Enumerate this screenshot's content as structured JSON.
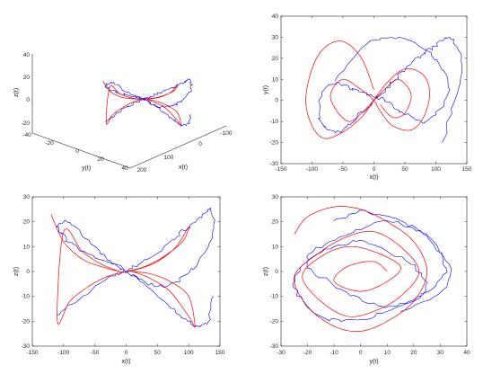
{
  "colors": {
    "blue": "#0000ff",
    "red": "#ff0000",
    "axis": "#262626"
  },
  "chart_data": [
    {
      "type": "line",
      "projection": "3d",
      "xlabel": "x(t)",
      "ylabel": "y(t)",
      "zlabel": "z(t)",
      "xticks": [
        "-100",
        "0",
        "100",
        "200"
      ],
      "yticks": [
        "-40",
        "-20",
        "0",
        "20",
        "40"
      ],
      "zticks": [
        "-20",
        "0",
        "20",
        "40"
      ],
      "xlim": [
        -100,
        200
      ],
      "ylim": [
        -40,
        40
      ],
      "zlim": [
        -20,
        40
      ],
      "series": [
        {
          "color": "blue",
          "style": "jagged",
          "points": "(x,y,z) traced from plot"
        },
        {
          "color": "red",
          "style": "smooth",
          "points": "(x,y,z) traced from plot"
        }
      ]
    },
    {
      "type": "line",
      "xlabel": "x(t)",
      "ylabel": "y(t)",
      "xticks": [
        "-150",
        "-100",
        "-50",
        "0",
        "50",
        "100",
        "150"
      ],
      "yticks": [
        "-30",
        "-20",
        "-10",
        "0",
        "10",
        "20",
        "30",
        "40"
      ],
      "xlim": [
        -150,
        150
      ],
      "ylim": [
        -30,
        40
      ],
      "series": [
        {
          "color": "blue",
          "style": "jagged",
          "x": [
            -60,
            -20,
            20,
            60,
            90,
            110,
            120,
            105,
            80,
            60,
            40,
            20,
            0,
            -20,
            -40,
            -60,
            -80,
            -90,
            -80,
            -60,
            -40,
            -20,
            0,
            20,
            40,
            60,
            80,
            100,
            120,
            135,
            140,
            130,
            110
          ],
          "y": [
            10,
            25,
            30,
            28,
            22,
            15,
            5,
            -5,
            -10,
            -8,
            -4,
            0,
            2,
            4,
            6,
            8,
            5,
            -5,
            -12,
            -15,
            -12,
            -6,
            0,
            6,
            12,
            18,
            22,
            26,
            30,
            25,
            15,
            0,
            -20
          ]
        },
        {
          "color": "red",
          "style": "smooth",
          "x": [
            0,
            -20,
            -50,
            -80,
            -100,
            -110,
            -100,
            -80,
            -50,
            -20,
            0,
            20,
            50,
            80,
            90,
            80,
            60,
            30,
            10,
            0,
            -20,
            -50,
            -70,
            -60,
            -40,
            -20,
            0,
            20,
            40,
            60,
            50,
            30,
            10
          ],
          "y": [
            5,
            20,
            28,
            25,
            15,
            0,
            -12,
            -18,
            -15,
            -8,
            0,
            8,
            15,
            12,
            3,
            -8,
            -14,
            -12,
            -5,
            0,
            5,
            10,
            3,
            -5,
            -10,
            -6,
            0,
            6,
            10,
            3,
            -6,
            -8,
            -2
          ]
        }
      ]
    },
    {
      "type": "line",
      "xlabel": "x(t)",
      "ylabel": "z(t)",
      "xticks": [
        "-150",
        "-100",
        "-50",
        "0",
        "50",
        "100",
        "150"
      ],
      "yticks": [
        "-30",
        "-20",
        "-10",
        "0",
        "10",
        "20",
        "30"
      ],
      "xlim": [
        -150,
        150
      ],
      "ylim": [
        -30,
        30
      ],
      "series": [
        {
          "color": "blue",
          "style": "jagged",
          "x": [
            -110,
            -80,
            -50,
            -20,
            0,
            20,
            50,
            80,
            100,
            120,
            135,
            140,
            120,
            100,
            80,
            50,
            20,
            0,
            -20,
            -50,
            -80,
            -100,
            -110,
            -90,
            -60,
            -30,
            0,
            30,
            60,
            90,
            110,
            130,
            140
          ],
          "y": [
            -18,
            -12,
            -6,
            -2,
            0,
            3,
            8,
            14,
            18,
            22,
            25,
            15,
            5,
            0,
            -4,
            -6,
            -3,
            0,
            3,
            6,
            10,
            14,
            18,
            20,
            12,
            5,
            0,
            -5,
            -12,
            -18,
            -22,
            -20,
            -10
          ]
        },
        {
          "color": "red",
          "style": "smooth",
          "x": [
            -120,
            -100,
            -70,
            -40,
            -10,
            0,
            10,
            40,
            70,
            100,
            110,
            100,
            70,
            40,
            10,
            0,
            -10,
            -40,
            -70,
            -100,
            -110,
            -90,
            -60,
            -30,
            0,
            30,
            60,
            90,
            100,
            80,
            50,
            20,
            0
          ],
          "y": [
            23,
            12,
            5,
            2,
            0,
            0,
            0,
            -3,
            -8,
            -18,
            -22,
            -10,
            -4,
            -1,
            0,
            0,
            0,
            3,
            8,
            16,
            -20,
            -12,
            -6,
            -2,
            0,
            2,
            6,
            12,
            18,
            10,
            4,
            1,
            0
          ]
        }
      ]
    },
    {
      "type": "line",
      "xlabel": "y(t)",
      "ylabel": "z(t)",
      "xticks": [
        "-30",
        "-20",
        "-10",
        "0",
        "10",
        "20",
        "30",
        "40"
      ],
      "yticks": [
        "-30",
        "-20",
        "-10",
        "0",
        "10",
        "20",
        "30"
      ],
      "xlim": [
        -30,
        40
      ],
      "ylim": [
        -30,
        30
      ],
      "series": [
        {
          "color": "blue",
          "style": "jagged",
          "x": [
            -10,
            0,
            10,
            20,
            28,
            32,
            25,
            15,
            5,
            -5,
            -15,
            -22,
            -25,
            -20,
            -10,
            0,
            10,
            20,
            25,
            18,
            8,
            -2,
            -12,
            -20,
            -18,
            -8,
            2,
            12,
            22,
            30,
            34,
            28,
            15
          ],
          "y": [
            20,
            24,
            22,
            18,
            10,
            0,
            -8,
            -14,
            -18,
            -20,
            -18,
            -12,
            -4,
            4,
            10,
            12,
            8,
            2,
            -6,
            -12,
            -14,
            -10,
            -4,
            2,
            8,
            14,
            18,
            20,
            16,
            8,
            -2,
            -10,
            -16
          ]
        },
        {
          "color": "red",
          "style": "smooth",
          "x": [
            -25,
            -20,
            -10,
            0,
            10,
            20,
            25,
            20,
            10,
            0,
            -10,
            -20,
            -25,
            -15,
            -5,
            5,
            15,
            22,
            15,
            5,
            -5,
            -15,
            -22,
            -15,
            -5,
            5,
            15,
            10,
            0,
            -10,
            -5,
            5,
            10
          ],
          "y": [
            15,
            22,
            26,
            25,
            20,
            12,
            0,
            -12,
            -20,
            -24,
            -22,
            -14,
            -2,
            8,
            14,
            16,
            10,
            0,
            -10,
            -16,
            -18,
            -12,
            -2,
            6,
            10,
            8,
            2,
            -4,
            -8,
            -4,
            2,
            4,
            0
          ]
        }
      ]
    }
  ]
}
